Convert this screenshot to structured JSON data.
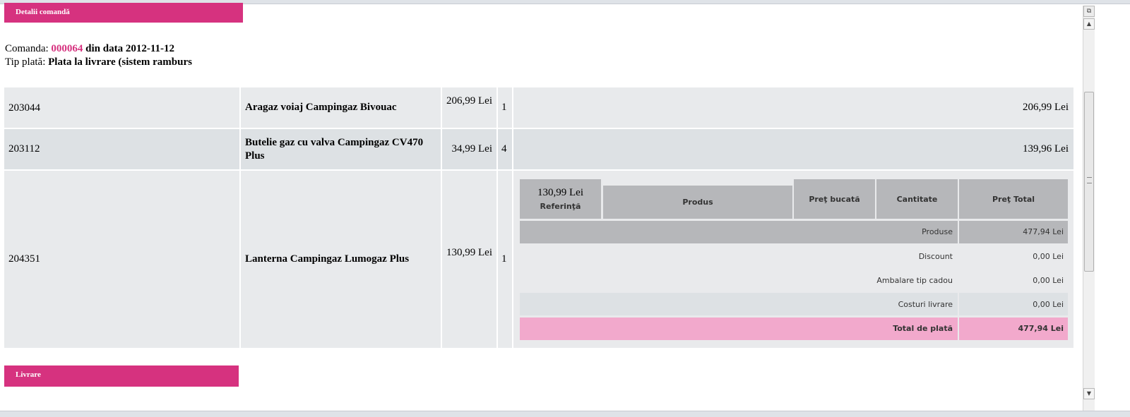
{
  "section_headers": {
    "order_details": "Detalii comandă",
    "delivery": "Livrare"
  },
  "order": {
    "label": "Comanda: ",
    "number": "000064",
    "date_text": " din data 2012-11-12",
    "payment_label": "Tip plată: ",
    "payment_value": "Plata la livrare (sistem ramburs"
  },
  "items": [
    {
      "ref": "203044",
      "product": "Aragaz voiaj Campingaz Bivouac",
      "unit_price": "206,99 Lei",
      "qty": "1",
      "total": "206,99 Lei"
    },
    {
      "ref": "203112",
      "product": "Butelie gaz cu valva Campingaz CV470 Plus",
      "unit_price": "34,99 Lei",
      "qty": "4",
      "total": "139,96 Lei"
    },
    {
      "ref": "204351",
      "product": "Lanterna Campingaz Lumogaz Plus",
      "unit_price": "130,99 Lei",
      "qty": "1",
      "total": "130,99 Lei"
    }
  ],
  "table_header": {
    "ref": "Referinţă",
    "product": "Produs",
    "unit_price": "Preţ bucată",
    "qty": "Cantitate",
    "total": "Preţ Total"
  },
  "summary": {
    "products_label": "Produse",
    "products_value": "477,94 Lei",
    "discount_label": "Discount",
    "discount_value": "0,00 Lei",
    "gift_label": "Ambalare tip cadou",
    "gift_value": "0,00 Lei",
    "shipping_label": "Costuri livrare",
    "shipping_value": "0,00 Lei",
    "total_label": "Total de plată",
    "total_value": "477,94 Lei"
  },
  "colors": {
    "accent": "#d6327f",
    "total_row": "#f2a9cc",
    "header_gray": "#b6b7ba"
  }
}
